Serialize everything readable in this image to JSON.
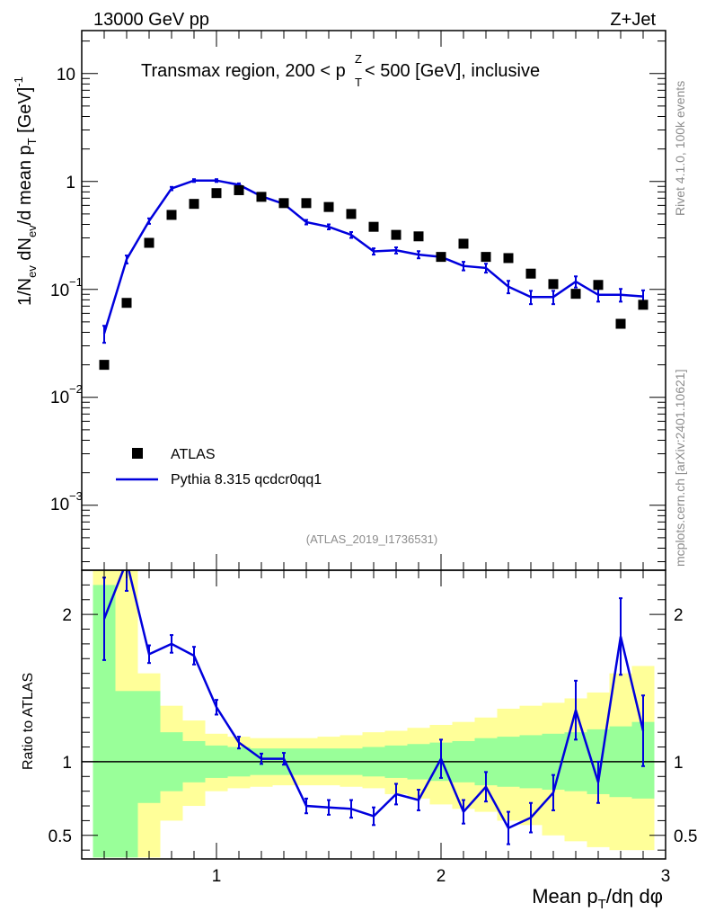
{
  "header": {
    "left": "13000 GeV pp",
    "right": "Z+Jet"
  },
  "title": {
    "main": "Transmax region, 200 < p",
    "sup": "Z",
    "sub": "T",
    "tail": " < 500 [GeV], inclusive"
  },
  "side_labels": {
    "rivet": "Rivet 4.1.0,  100k events",
    "mcplots": "mcplots.cern.ch [arXiv:2401.10621]"
  },
  "analysis_tag": "(ATLAS_2019_I1736531)",
  "legend": {
    "data_label": "ATLAS",
    "mc_label": "Pythia 8.315 qcdcr0qq1"
  },
  "colors": {
    "mc": "#0000dd",
    "band_inner": "#99ff99",
    "band_outer": "#ffff99",
    "data": "#000000"
  },
  "ytick_labels_main": {
    "d1": "10",
    "e1": "−1",
    "d2": "10",
    "e2": "−2",
    "d3": "10",
    "e3": "−3"
  },
  "chart_data": [
    {
      "type": "scatter",
      "panel": "main",
      "ylabel": "1/N_ev dN_ev/d mean p_T [GeV]^-1",
      "yscale": "log",
      "ylim": [
        0.00025,
        25
      ],
      "xlim": [
        0.4,
        3.0
      ],
      "ytick_labels": [
        "10",
        "1"
      ],
      "x": [
        0.5,
        0.6,
        0.7,
        0.8,
        0.9,
        1.0,
        1.1,
        1.2,
        1.3,
        1.4,
        1.5,
        1.6,
        1.7,
        1.8,
        1.9,
        2.0,
        2.1,
        2.2,
        2.3,
        2.4,
        2.5,
        2.6,
        2.7,
        2.8,
        2.9
      ],
      "series": [
        {
          "name": "ATLAS",
          "values": [
            0.02,
            0.075,
            0.27,
            0.49,
            0.62,
            0.78,
            0.83,
            0.72,
            0.63,
            0.63,
            0.58,
            0.5,
            0.38,
            0.32,
            0.31,
            0.2,
            0.265,
            0.2,
            0.195,
            0.14,
            0.112,
            0.091,
            0.11,
            0.048,
            0.072
          ]
        },
        {
          "name": "Pythia 8.315 qcdcr0qq1",
          "values": [
            0.039,
            0.19,
            0.43,
            0.86,
            1.02,
            1.02,
            0.93,
            0.73,
            0.62,
            0.42,
            0.38,
            0.32,
            0.225,
            0.23,
            0.21,
            0.2,
            0.165,
            0.158,
            0.106,
            0.085,
            0.085,
            0.118,
            0.089,
            0.089,
            0.086
          ],
          "errors": [
            0.007,
            0.016,
            0.025,
            0.03,
            0.03,
            0.03,
            0.03,
            0.025,
            0.02,
            0.02,
            0.02,
            0.02,
            0.015,
            0.015,
            0.016,
            0.015,
            0.015,
            0.015,
            0.014,
            0.012,
            0.012,
            0.014,
            0.012,
            0.012,
            0.012
          ]
        }
      ]
    },
    {
      "type": "line",
      "panel": "ratio",
      "ylabel": "Ratio to ATLAS",
      "xlabel": "Mean p_T/dη dφ",
      "ylim": [
        0.34,
        2.3
      ],
      "xlim": [
        0.4,
        3.0
      ],
      "xtick_labels": [
        "1",
        "2",
        "3"
      ],
      "ytick_labels": [
        "0.5",
        "1",
        "2"
      ],
      "reference": 1.0,
      "x": [
        0.5,
        0.6,
        0.7,
        0.8,
        0.9,
        1.0,
        1.1,
        1.2,
        1.3,
        1.4,
        1.5,
        1.6,
        1.7,
        1.8,
        1.9,
        2.0,
        2.1,
        2.2,
        2.3,
        2.4,
        2.5,
        2.6,
        2.7,
        2.8,
        2.9
      ],
      "series": [
        {
          "name": "Pythia 8.315 qcdcr0qq1 / ATLAS",
          "values": [
            1.97,
            2.36,
            1.73,
            1.8,
            1.72,
            1.37,
            1.13,
            1.02,
            1.02,
            0.7,
            0.69,
            0.68,
            0.63,
            0.78,
            0.74,
            1.02,
            0.66,
            0.83,
            0.55,
            0.62,
            0.79,
            1.35,
            0.86,
            1.85,
            1.21
          ],
          "errors": [
            0.28,
            0.2,
            0.06,
            0.06,
            0.06,
            0.05,
            0.04,
            0.035,
            0.04,
            0.05,
            0.05,
            0.06,
            0.06,
            0.07,
            0.07,
            0.13,
            0.08,
            0.1,
            0.11,
            0.1,
            0.12,
            0.2,
            0.14,
            0.26,
            0.24
          ]
        }
      ],
      "bands": {
        "x_edges": [
          0.45,
          0.55,
          0.65,
          0.75,
          0.85,
          0.95,
          1.05,
          1.15,
          1.25,
          1.35,
          1.45,
          1.55,
          1.65,
          1.75,
          1.85,
          1.95,
          2.05,
          2.15,
          2.25,
          2.35,
          2.45,
          2.55,
          2.65,
          2.75,
          2.85,
          2.95
        ],
        "inner_hi": [
          2.2,
          1.48,
          1.48,
          1.2,
          1.14,
          1.11,
          1.1,
          1.09,
          1.09,
          1.09,
          1.09,
          1.09,
          1.1,
          1.11,
          1.12,
          1.13,
          1.14,
          1.16,
          1.17,
          1.18,
          1.19,
          1.2,
          1.22,
          1.24,
          1.27
        ],
        "inner_lo": [
          0.35,
          0.35,
          0.72,
          0.8,
          0.86,
          0.89,
          0.9,
          0.91,
          0.91,
          0.91,
          0.91,
          0.91,
          0.9,
          0.89,
          0.88,
          0.87,
          0.86,
          0.84,
          0.83,
          0.82,
          0.81,
          0.8,
          0.78,
          0.76,
          0.75
        ],
        "outer_hi": [
          2.4,
          2.4,
          1.6,
          1.38,
          1.28,
          1.19,
          1.17,
          1.16,
          1.16,
          1.16,
          1.17,
          1.18,
          1.2,
          1.21,
          1.23,
          1.25,
          1.27,
          1.3,
          1.36,
          1.38,
          1.4,
          1.43,
          1.47,
          1.6,
          1.65
        ],
        "outer_lo": [
          0.35,
          0.35,
          0.35,
          0.6,
          0.7,
          0.8,
          0.82,
          0.83,
          0.84,
          0.84,
          0.84,
          0.83,
          0.82,
          0.78,
          0.75,
          0.71,
          0.68,
          0.66,
          0.6,
          0.57,
          0.5,
          0.46,
          0.42,
          0.4,
          0.4
        ]
      }
    }
  ]
}
